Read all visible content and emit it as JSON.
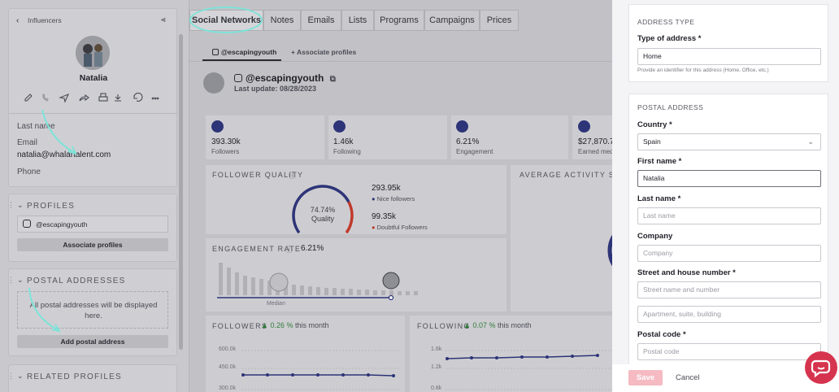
{
  "left": {
    "back_label": "Influencers",
    "collapse_icon": "collapse-left-icon",
    "profile_name": "Natalia",
    "fields": {
      "last_name_label": "Last name",
      "email_label": "Email",
      "email_value": "natalia@whalartalent.com",
      "phone_label": "Phone"
    },
    "profiles_title": "PROFILES",
    "profile_handle": "@escapingyouth",
    "associate_profiles_btn": "Associate profiles",
    "postal_title": "POSTAL ADDRESSES",
    "postal_empty": "All postal addresses will be displayed here.",
    "add_postal_btn": "Add postal address",
    "related_title": "RELATED PROFILES"
  },
  "mid": {
    "tabs": [
      "Social Networks",
      "Notes",
      "Emails",
      "Lists",
      "Programs",
      "Campaigns",
      "Prices"
    ],
    "subtabs": {
      "handle": "@escapingyouth",
      "associate": "Associate profiles"
    },
    "handle_title": "@escapingyouth",
    "last_update": "Last update: 08/28/2023",
    "stats": [
      {
        "value": "393.30k",
        "label": "Followers"
      },
      {
        "value": "1.46k",
        "label": "Following"
      },
      {
        "value": "6.21%",
        "label": "Engagement"
      },
      {
        "value": "$27,870.72",
        "label": "Earned media"
      }
    ],
    "follower_quality": {
      "title": "FOLLOWER QUALITY",
      "gauge_value": "74.74%",
      "gauge_label": "Quality",
      "gauge_fraction": 0.7474,
      "nice_value": "293.95k",
      "nice_label": "Nice followers",
      "doubtful_value": "99.35k",
      "doubtful_label": "Doubtful Followers"
    },
    "average_activity_title": "AVERAGE ACTIVITY SPLIT",
    "engagement": {
      "title": "ENGAGEMENT RATE",
      "value": "6.21%",
      "median_label": "Median"
    },
    "followers_panel": {
      "title": "FOLLOWERS",
      "change": "0.26 %",
      "period": "this month",
      "ticks": [
        "600.0k",
        "450.0k",
        "300.0k"
      ]
    },
    "following_panel": {
      "title": "FOLLOWING",
      "change": "0.07 %",
      "period": "this month",
      "ticks": [
        "1.6k",
        "1.2k",
        "0.8k"
      ]
    },
    "colors": {
      "navy": "#2d3477",
      "red": "#c0392b",
      "green": "#2f7c3a"
    }
  },
  "form": {
    "address_type": {
      "heading": "ADDRESS TYPE",
      "label": "Type of address *",
      "value": "Home",
      "hint": "Provide an identifier for this address (Home, Office, etc.)"
    },
    "postal": {
      "heading": "POSTAL ADDRESS",
      "country_label": "Country *",
      "country_value": "Spain",
      "first_name_label": "First name *",
      "first_name_value": "Natalia",
      "last_name_label": "Last name *",
      "last_name_placeholder": "Last name",
      "company_label": "Company",
      "company_placeholder": "Company",
      "street_label": "Street and house number *",
      "street_placeholder": "Street name and number",
      "apartment_placeholder": "Apartment, suite, building",
      "postal_code_label": "Postal code *",
      "postal_code_placeholder": "Postal code"
    },
    "save_label": "Save",
    "cancel_label": "Cancel",
    "accent": "#d6344e"
  }
}
